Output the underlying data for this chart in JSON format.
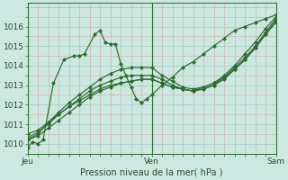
{
  "xlabel": "Pression niveau de la mer( hPa )",
  "bg_color": "#cce8e0",
  "grid_color": "#aacccc",
  "line_color": "#2d6b2d",
  "marker_color": "#2d6b2d",
  "xlim": [
    0,
    48
  ],
  "ylim": [
    1009.5,
    1017.2
  ],
  "yticks": [
    1010,
    1011,
    1012,
    1013,
    1014,
    1015,
    1016
  ],
  "xtick_positions": [
    0,
    24,
    48
  ],
  "xtick_labels": [
    "Jeu",
    "Ven",
    "Sam"
  ],
  "vline_positions": [
    0,
    24,
    48
  ],
  "series": [
    {
      "x": [
        0,
        1,
        2,
        3,
        5,
        7,
        9,
        10,
        11,
        13,
        14,
        15,
        16,
        17,
        18,
        19,
        20,
        21,
        22,
        23,
        24,
        26,
        28,
        30,
        32,
        34,
        36,
        38,
        40,
        42,
        44,
        46,
        48
      ],
      "y": [
        1009.8,
        1010.1,
        1010.0,
        1010.2,
        1013.1,
        1014.3,
        1014.5,
        1014.5,
        1014.6,
        1015.6,
        1015.8,
        1015.2,
        1015.1,
        1015.1,
        1014.1,
        1013.5,
        1012.9,
        1012.3,
        1012.1,
        1012.3,
        1012.5,
        1013.0,
        1013.4,
        1013.9,
        1014.2,
        1014.6,
        1015.0,
        1015.4,
        1015.8,
        1016.0,
        1016.2,
        1016.4,
        1016.6
      ]
    },
    {
      "x": [
        0,
        2,
        4,
        6,
        8,
        10,
        12,
        14,
        16,
        18,
        20,
        22,
        24,
        26,
        28,
        30,
        32,
        34,
        36,
        38,
        40,
        42,
        44,
        46,
        48
      ],
      "y": [
        1010.2,
        1010.5,
        1011.1,
        1011.6,
        1012.1,
        1012.5,
        1012.9,
        1013.3,
        1013.6,
        1013.8,
        1013.9,
        1013.9,
        1013.9,
        1013.5,
        1013.2,
        1012.9,
        1012.8,
        1012.9,
        1013.1,
        1013.5,
        1014.0,
        1014.6,
        1015.2,
        1015.9,
        1016.5
      ]
    },
    {
      "x": [
        0,
        2,
        4,
        6,
        8,
        10,
        12,
        14,
        16,
        18,
        20,
        22,
        24,
        26,
        28,
        30,
        32,
        34,
        36,
        38,
        40,
        42,
        44,
        46,
        48
      ],
      "y": [
        1010.3,
        1010.6,
        1011.0,
        1011.5,
        1011.9,
        1012.3,
        1012.7,
        1013.0,
        1013.2,
        1013.4,
        1013.5,
        1013.5,
        1013.5,
        1013.3,
        1013.0,
        1012.8,
        1012.7,
        1012.8,
        1013.0,
        1013.3,
        1013.8,
        1014.3,
        1014.9,
        1015.6,
        1016.3
      ]
    },
    {
      "x": [
        0,
        2,
        4,
        6,
        8,
        10,
        12,
        14,
        16,
        18,
        20,
        22,
        24,
        26,
        28,
        30,
        32,
        34,
        36,
        38,
        40,
        42,
        44,
        46,
        48
      ],
      "y": [
        1010.5,
        1010.7,
        1011.1,
        1011.5,
        1011.9,
        1012.2,
        1012.5,
        1012.8,
        1013.0,
        1013.1,
        1013.2,
        1013.3,
        1013.3,
        1013.1,
        1012.9,
        1012.8,
        1012.7,
        1012.8,
        1013.0,
        1013.4,
        1013.8,
        1014.3,
        1014.9,
        1015.6,
        1016.2
      ]
    },
    {
      "x": [
        0,
        2,
        4,
        6,
        8,
        10,
        12,
        14,
        16,
        18,
        20,
        22,
        24,
        26,
        28,
        30,
        32,
        34,
        36,
        38,
        40,
        42,
        44,
        46,
        48
      ],
      "y": [
        1010.2,
        1010.4,
        1010.8,
        1011.2,
        1011.6,
        1012.0,
        1012.4,
        1012.7,
        1012.9,
        1013.1,
        1013.2,
        1013.3,
        1013.3,
        1013.1,
        1012.9,
        1012.8,
        1012.7,
        1012.9,
        1013.1,
        1013.4,
        1013.9,
        1014.4,
        1015.0,
        1015.7,
        1016.4
      ]
    }
  ]
}
